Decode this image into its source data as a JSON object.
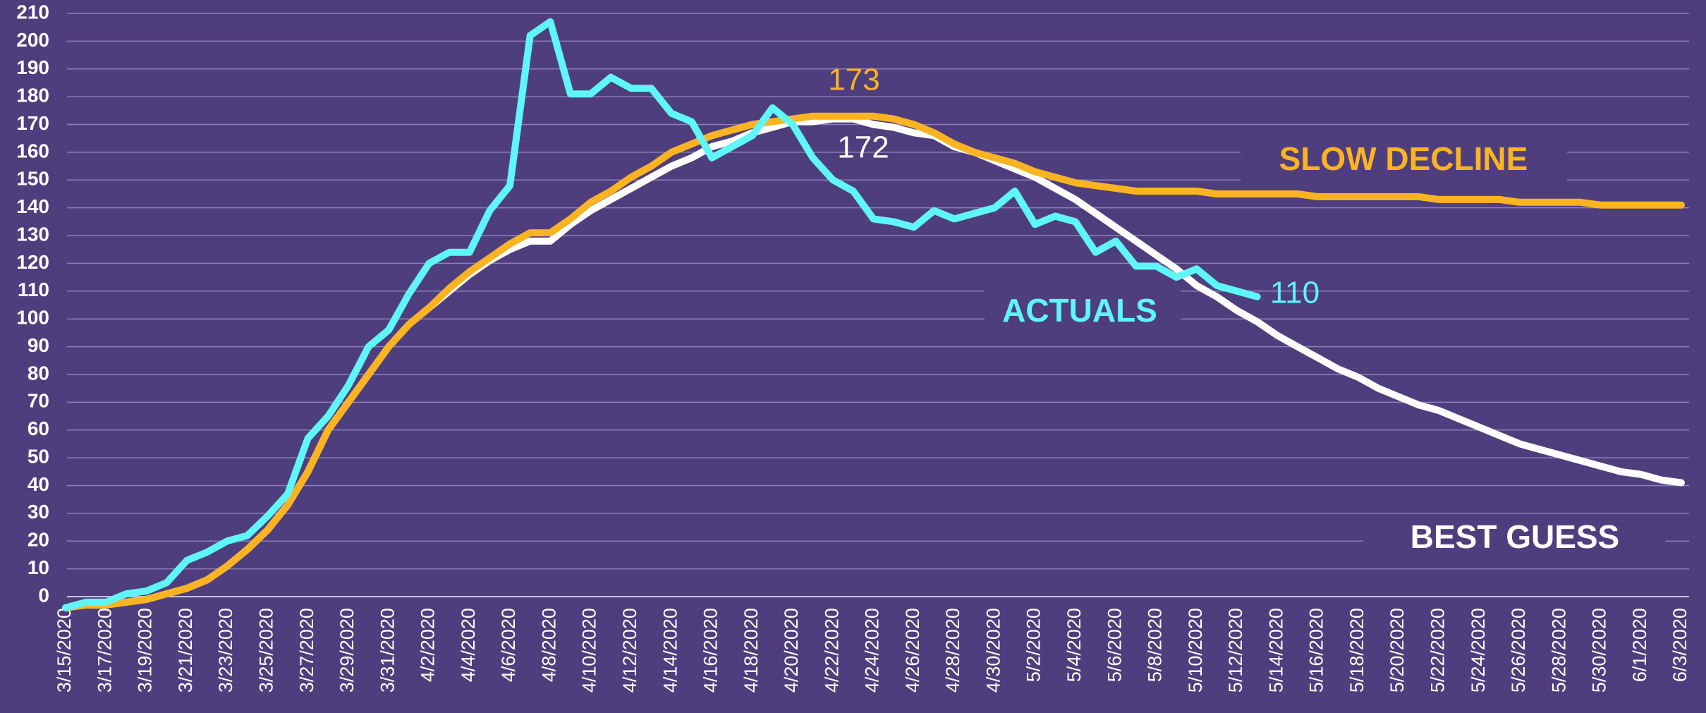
{
  "chart_data": {
    "type": "line",
    "categories": [
      "3/15/2020",
      null,
      "3/17/2020",
      null,
      "3/19/2020",
      null,
      "3/21/2020",
      null,
      "3/23/2020",
      null,
      "3/25/2020",
      null,
      "3/27/2020",
      null,
      "3/29/2020",
      null,
      "3/31/2020",
      null,
      "4/2/2020",
      null,
      "4/4/2020",
      null,
      "4/6/2020",
      null,
      "4/8/2020",
      null,
      "4/10/2020",
      null,
      "4/12/2020",
      null,
      "4/14/2020",
      null,
      "4/16/2020",
      null,
      "4/18/2020",
      null,
      "4/20/2020",
      null,
      "4/22/2020",
      null,
      "4/24/2020",
      null,
      "4/26/2020",
      null,
      "4/28/2020",
      null,
      "4/30/2020",
      null,
      "5/2/2020",
      null,
      "5/4/2020",
      null,
      "5/6/2020",
      null,
      "5/8/2020",
      null,
      "5/10/2020",
      null,
      "5/12/2020",
      null,
      "5/14/2020",
      null,
      "5/16/2020",
      null,
      "5/18/2020",
      null,
      "5/20/2020",
      null,
      "5/22/2020",
      null,
      "5/24/2020",
      null,
      "5/26/2020",
      null,
      "5/28/2020",
      null,
      "5/30/2020",
      null,
      "6/1/2020",
      null,
      "6/3/2020"
    ],
    "series": [
      {
        "name": "ACTUALS",
        "color": "#5ff6f8",
        "values": [
          -4,
          -2,
          -2,
          1,
          2,
          5,
          13,
          16,
          20,
          22,
          29,
          37,
          57,
          65,
          76,
          90,
          96,
          109,
          120,
          124,
          124,
          139,
          148,
          202,
          207,
          181,
          181,
          187,
          183,
          183,
          174,
          171,
          158,
          162,
          166,
          176,
          170,
          158,
          150,
          146,
          136,
          135,
          133,
          139,
          136,
          138,
          140,
          146,
          134,
          137,
          135,
          124,
          128,
          119,
          119,
          115,
          118,
          112,
          110,
          108,
          null,
          null,
          null,
          null,
          null,
          null,
          null,
          null,
          null,
          null,
          null,
          null,
          null,
          null,
          null,
          null,
          null,
          null,
          null,
          null,
          null
        ]
      },
      {
        "name": "SLOW DECLINE",
        "color": "#fbb421",
        "values": [
          -4,
          -3,
          -3,
          -2,
          -1,
          1,
          3,
          6,
          11,
          17,
          24,
          33,
          45,
          60,
          70,
          80,
          90,
          98,
          104,
          111,
          117,
          122,
          127,
          131,
          131,
          136,
          142,
          146,
          151,
          155,
          160,
          163,
          166,
          168,
          170,
          171,
          172,
          173,
          173,
          173,
          173,
          172,
          170,
          167,
          163,
          160,
          158,
          156,
          153,
          151,
          149,
          148,
          147,
          146,
          146,
          146,
          146,
          145,
          145,
          145,
          145,
          145,
          144,
          144,
          144,
          144,
          144,
          144,
          143,
          143,
          143,
          143,
          142,
          142,
          142,
          142,
          141,
          141,
          141,
          141,
          141
        ]
      },
      {
        "name": "BEST GUESS",
        "color": "#ffffff",
        "values": [
          -4,
          -3,
          -3,
          -2,
          -1,
          1,
          3,
          6,
          11,
          17,
          24,
          33,
          45,
          60,
          70,
          80,
          90,
          98,
          104,
          110,
          116,
          121,
          125,
          128,
          128,
          134,
          139,
          143,
          147,
          151,
          155,
          158,
          162,
          164,
          167,
          169,
          171,
          171,
          172,
          172,
          170,
          169,
          167,
          166,
          162,
          160,
          157,
          154,
          151,
          147,
          143,
          138,
          133,
          128,
          123,
          118,
          112,
          108,
          103,
          99,
          94,
          90,
          86,
          82,
          79,
          75,
          72,
          69,
          67,
          64,
          61,
          58,
          55,
          53,
          51,
          49,
          47,
          45,
          44,
          42,
          41
        ]
      }
    ],
    "annotations": [
      "173",
      "172",
      "110"
    ],
    "ylim": [
      0,
      210
    ],
    "yticks": [
      0,
      10,
      20,
      30,
      40,
      50,
      60,
      70,
      80,
      90,
      100,
      110,
      120,
      130,
      140,
      150,
      160,
      170,
      180,
      190,
      200,
      210
    ],
    "grid": true
  }
}
